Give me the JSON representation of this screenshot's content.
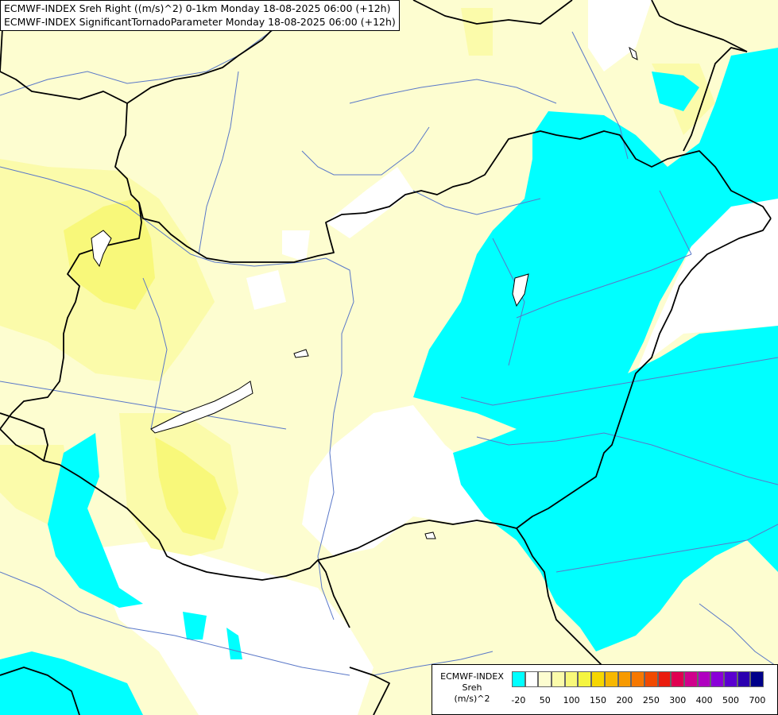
{
  "title": {
    "line1": "ECMWF-INDEX Sreh Right ((m/s)^2) 0-1km Monday 18-08-2025 06:00 (+12h)",
    "line2": "ECMWF-INDEX SignificantTornadoParameter Monday 18-08-2025 06:00 (+12h)"
  },
  "legend": {
    "title_line1": "ECMWF-INDEX",
    "title_line2": "Sreh",
    "title_line3": "(m/s)^2",
    "colors": [
      "#00ffff",
      "#ffffff",
      "#fdfdd0",
      "#fbfbaa",
      "#f8f87a",
      "#f5f540",
      "#f6d600",
      "#f7b800",
      "#f79a00",
      "#f67800",
      "#f14a00",
      "#ea1c0e",
      "#e00050",
      "#d0008c",
      "#b000c0",
      "#8a00d8",
      "#5b00d0",
      "#2c00b0",
      "#00008a"
    ],
    "labels": [
      "-20",
      "50",
      "100",
      "150",
      "200",
      "250",
      "300",
      "400",
      "500",
      "700"
    ]
  },
  "map_colors": {
    "negative": "#00ffff",
    "low": "#fdfdd0",
    "medium": "#fbfbaa",
    "high": "#f8f87a",
    "higher": "#f5f540",
    "border": "#000000",
    "river": "#5a78c8"
  }
}
